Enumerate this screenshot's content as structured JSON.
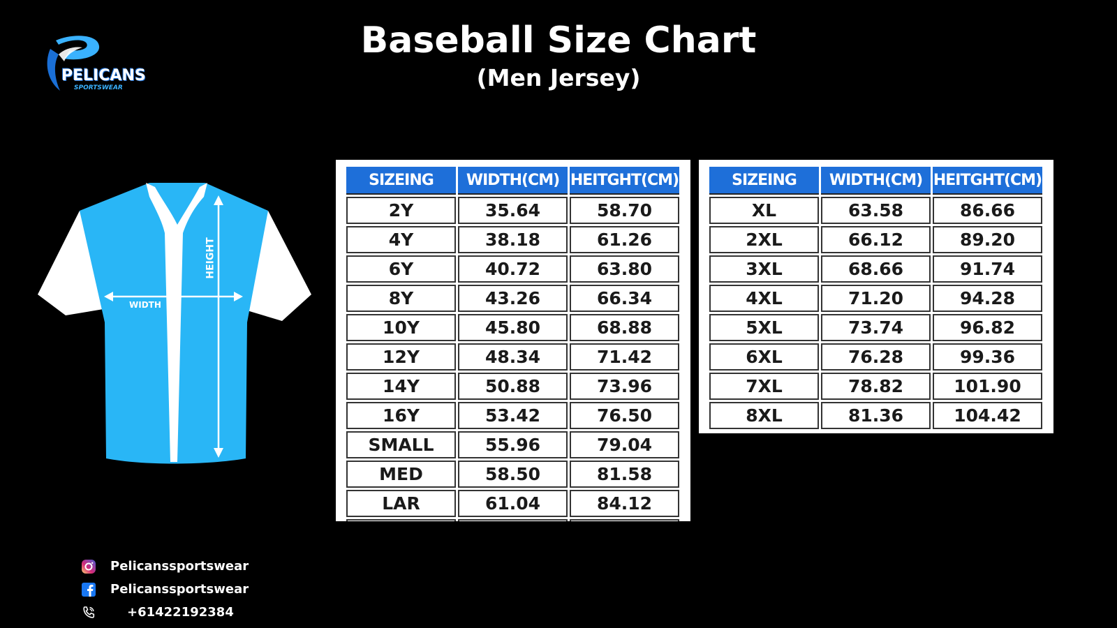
{
  "brand": {
    "name": "PELICANS",
    "tagline": "SPORTSWEAR",
    "colors": {
      "primary": "#3ab2ff",
      "dark_blue": "#1a6fd6"
    }
  },
  "header": {
    "title": "Baseball Size Chart",
    "subtitle": "(Men Jersey)"
  },
  "jersey": {
    "width_label": "WIDTH",
    "height_label": "HEIGHT",
    "colors": {
      "body": "#29b6f6",
      "sleeve": "#ffffff"
    }
  },
  "table_left": {
    "headers": [
      "SIZEING",
      "WIDTH(CM)",
      "HEITGHT(CM)"
    ],
    "rows": [
      [
        "2Y",
        "35.64",
        "58.70"
      ],
      [
        "4Y",
        "38.18",
        "61.26"
      ],
      [
        "6Y",
        "40.72",
        "63.80"
      ],
      [
        "8Y",
        "43.26",
        "66.34"
      ],
      [
        "10Y",
        "45.80",
        "68.88"
      ],
      [
        "12Y",
        "48.34",
        "71.42"
      ],
      [
        "14Y",
        "50.88",
        "73.96"
      ],
      [
        "16Y",
        "53.42",
        "76.50"
      ],
      [
        "SMALL",
        "55.96",
        "79.04"
      ],
      [
        "MED",
        "58.50",
        "81.58"
      ],
      [
        "LAR",
        "61.04",
        "84.12"
      ]
    ]
  },
  "table_right": {
    "headers": [
      "SIZEING",
      "WIDTH(CM)",
      "HEITGHT(CM)"
    ],
    "rows": [
      [
        "XL",
        "63.58",
        "86.66"
      ],
      [
        "2XL",
        "66.12",
        "89.20"
      ],
      [
        "3XL",
        "68.66",
        "91.74"
      ],
      [
        "4XL",
        "71.20",
        "94.28"
      ],
      [
        "5XL",
        "73.74",
        "96.82"
      ],
      [
        "6XL",
        "76.28",
        "99.36"
      ],
      [
        "7XL",
        "78.82",
        "101.90"
      ],
      [
        "8XL",
        "81.36",
        "104.42"
      ]
    ]
  },
  "contacts": {
    "instagram": "Pelicanssportswear",
    "facebook": "Pelicanssportswear",
    "phone": "+61422192384"
  }
}
